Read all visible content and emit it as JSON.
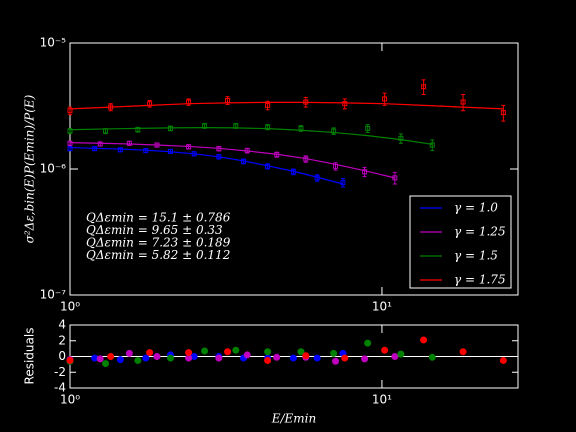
{
  "chart_data": {
    "type": "scatter",
    "xlog": true,
    "ylog": true,
    "xlim": [
      1,
      27.3
    ],
    "ylim": [
      1e-07,
      1e-05
    ],
    "xticks": [
      {
        "value": 1,
        "label": "10⁰"
      },
      {
        "value": 10,
        "label": "10¹"
      }
    ],
    "yticks": [
      {
        "value": 1e-07,
        "label": "10⁻⁷"
      },
      {
        "value": 1e-06,
        "label": "10⁻⁶"
      },
      {
        "value": 1e-05,
        "label": "10⁻⁵"
      }
    ],
    "ylabel": "σ²Δε,bin(E)P(Emin)/P(E)",
    "xlabel": "E/Emin",
    "legend": "lower right",
    "annotations": [
      {
        "text": "QΔεmin = 15.1 ± 0.786",
        "color": "#ff0000"
      },
      {
        "text": "QΔεmin = 9.65 ± 0.33",
        "color": "#008000"
      },
      {
        "text": "QΔεmin = 7.23 ± 0.189",
        "color": "#bf00bf"
      },
      {
        "text": "QΔεmin = 5.82 ± 0.112",
        "color": "#0000ff"
      }
    ],
    "series": [
      {
        "name": "γ = 1.0",
        "color": "#0000ff",
        "x": [
          1.0,
          1.2,
          1.45,
          1.75,
          2.1,
          2.5,
          3.0,
          3.6,
          4.3,
          5.2,
          6.2,
          7.5
        ],
        "values": [
          1.45e-06,
          1.45e-06,
          1.42e-06,
          1.4e-06,
          1.38e-06,
          1.32e-06,
          1.25e-06,
          1.15e-06,
          1.05e-06,
          9.5e-07,
          8.5e-07,
          7.8e-07
        ],
        "errors": [
          5e-08,
          5e-08,
          5e-08,
          5e-08,
          5e-08,
          5e-08,
          5e-08,
          5e-08,
          5e-08,
          5e-08,
          5e-08,
          6e-08
        ],
        "fit": [
          1.48e-06,
          1.46e-06,
          1.44e-06,
          1.41e-06,
          1.37e-06,
          1.32e-06,
          1.25e-06,
          1.16e-06,
          1.06e-06,
          9.6e-07,
          8.6e-07,
          7.6e-07
        ],
        "residuals": [
          -0.6,
          -0.2,
          -0.4,
          -0.2,
          0.2,
          0.0,
          0.0,
          -0.2,
          -0.2,
          -0.2,
          -0.2,
          0.4
        ]
      },
      {
        "name": "γ = 1.25",
        "color": "#bf00bf",
        "x": [
          1.0,
          1.25,
          1.55,
          1.9,
          2.4,
          3.0,
          3.7,
          4.6,
          5.7,
          7.1,
          8.8,
          11.0
        ],
        "values": [
          1.6e-06,
          1.58e-06,
          1.6e-06,
          1.55e-06,
          1.5e-06,
          1.45e-06,
          1.4e-06,
          1.3e-06,
          1.2e-06,
          1.05e-06,
          9.5e-07,
          8.5e-07
        ],
        "errors": [
          6e-08,
          6e-08,
          6e-08,
          6e-08,
          6e-08,
          6e-08,
          6e-08,
          6e-08,
          7e-08,
          7e-08,
          8e-08,
          9e-08
        ],
        "fit": [
          1.62e-06,
          1.6e-06,
          1.58e-06,
          1.55e-06,
          1.51e-06,
          1.46e-06,
          1.39e-06,
          1.31e-06,
          1.21e-06,
          1.09e-06,
          9.7e-07,
          8.5e-07
        ],
        "residuals": [
          -0.4,
          -0.3,
          0.4,
          0.0,
          -0.2,
          -0.2,
          0.2,
          -0.1,
          -0.1,
          -0.6,
          -0.3,
          0.0
        ]
      },
      {
        "name": "γ = 1.5",
        "color": "#008000",
        "x": [
          1.0,
          1.3,
          1.65,
          2.1,
          2.7,
          3.4,
          4.3,
          5.5,
          7.0,
          9.0,
          11.5,
          14.5
        ],
        "values": [
          2e-06,
          2e-06,
          2.05e-06,
          2.1e-06,
          2.2e-06,
          2.2e-06,
          2.15e-06,
          2.1e-06,
          2e-06,
          2.1e-06,
          1.75e-06,
          1.55e-06
        ],
        "errors": [
          9e-08,
          9e-08,
          9e-08,
          9e-08,
          1e-07,
          1e-07,
          1e-07,
          1.1e-07,
          1.2e-07,
          1.5e-07,
          1.5e-07,
          1.5e-07
        ],
        "fit": [
          2.05e-06,
          2.08e-06,
          2.1e-06,
          2.12e-06,
          2.13e-06,
          2.12e-06,
          2.09e-06,
          2.03e-06,
          1.95e-06,
          1.84e-06,
          1.71e-06,
          1.57e-06
        ],
        "residuals": [
          -0.6,
          -0.9,
          -0.5,
          -0.2,
          0.7,
          0.8,
          0.6,
          0.6,
          0.4,
          1.7,
          0.3,
          -0.1
        ]
      },
      {
        "name": "γ = 1.75",
        "color": "#ff0000",
        "x": [
          1.0,
          1.35,
          1.8,
          2.4,
          3.2,
          4.3,
          5.7,
          7.6,
          10.2,
          13.6,
          18.2,
          24.5
        ],
        "values": [
          2.9e-06,
          3.1e-06,
          3.3e-06,
          3.4e-06,
          3.5e-06,
          3.2e-06,
          3.4e-06,
          3.3e-06,
          3.6e-06,
          4.5e-06,
          3.4e-06,
          2.8e-06
        ],
        "errors": [
          2e-07,
          2e-07,
          2e-07,
          2e-07,
          2.5e-07,
          2.5e-07,
          3e-07,
          3e-07,
          4e-07,
          6e-07,
          5e-07,
          4e-07
        ],
        "fit": [
          3e-06,
          3.1e-06,
          3.2e-06,
          3.3e-06,
          3.35e-06,
          3.38e-06,
          3.38e-06,
          3.35e-06,
          3.3e-06,
          3.2e-06,
          3.1e-06,
          3e-06
        ],
        "residuals": [
          -0.5,
          0.0,
          0.5,
          0.5,
          0.6,
          -0.5,
          0.1,
          -0.2,
          0.8,
          2.1,
          0.6,
          -0.5
        ]
      }
    ],
    "residuals": {
      "ylabel": "Residuals",
      "ylim": [
        -4,
        4
      ],
      "yticks": [
        -4,
        -2,
        0,
        2,
        4
      ]
    }
  }
}
